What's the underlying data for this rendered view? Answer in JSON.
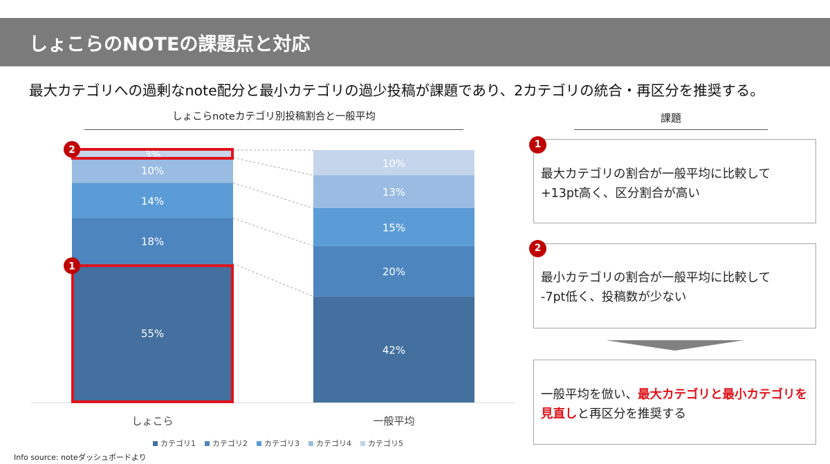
{
  "header": {
    "title": "しょこらのNOTEの課題点と対応"
  },
  "lead": "最大カテゴリへの過剰なnote配分と最小カテゴリの過少投稿が課題であり、2カテゴリの統合・再区分を推奨する。",
  "chart_data": {
    "type": "bar",
    "stacked": true,
    "percent": true,
    "title": "しょこらnoteカテゴリ別投稿割合と一般平均",
    "categories": [
      "しょこら",
      "一般平均"
    ],
    "series": [
      {
        "name": "カテゴリ1",
        "values": [
          55,
          42
        ],
        "color": "#43709e"
      },
      {
        "name": "カテゴリ2",
        "values": [
          18,
          20
        ],
        "color": "#4d85bf"
      },
      {
        "name": "カテゴリ3",
        "values": [
          14,
          15
        ],
        "color": "#5b9cd6"
      },
      {
        "name": "カテゴリ4",
        "values": [
          10,
          13
        ],
        "color": "#9abce2"
      },
      {
        "name": "カテゴリ5",
        "values": [
          3,
          10
        ],
        "color": "#c4d5ec"
      }
    ],
    "ylim": [
      0,
      100
    ],
    "grid": false,
    "legend": "bottom",
    "connectors": true
  },
  "issues": {
    "heading": "課題",
    "items": [
      {
        "number": "1",
        "line1": "最大カテゴリの割合が一般平均に比較して",
        "line2": "+13pt高く、区分割合が高い"
      },
      {
        "number": "2",
        "line1": "最小カテゴリの割合が一般平均に比較して",
        "line2": "-7pt低く、投稿数が少ない"
      }
    ]
  },
  "recommendation": {
    "pre": "一般平均を倣い、",
    "highlight": "最大カテゴリと最小カテゴリを見直し",
    "post": "と再区分を推奨する"
  },
  "colors": {
    "header_bg": "#7b7b7b",
    "badge": "#c00000",
    "highlight_red": "#e0121b"
  },
  "source": "Info source: noteダッシュボードより"
}
